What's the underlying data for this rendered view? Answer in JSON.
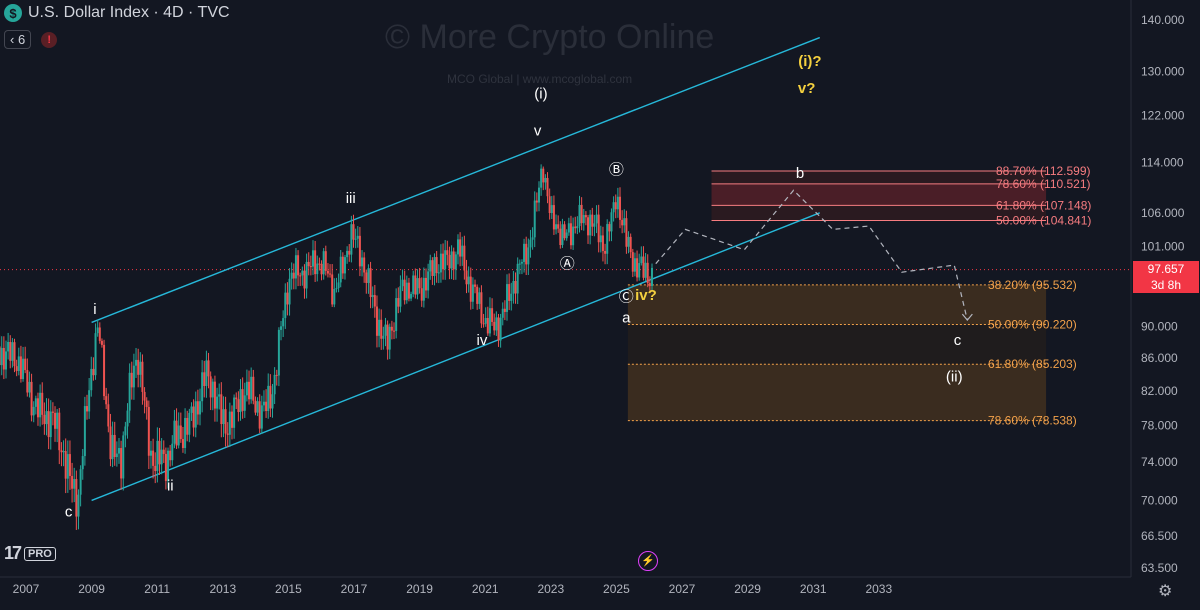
{
  "header": {
    "title": "U.S. Dollar Index · 4D · TVC",
    "coin_symbol": "$",
    "indicator_count": "6",
    "alert_symbol": "!"
  },
  "watermark": {
    "main": "© More Crypto Online",
    "sub": "MCO Global   |   www.mcoglobal.com"
  },
  "branding": {
    "logo": "17",
    "badge": "PRO"
  },
  "price_tag": {
    "price": "97.657",
    "countdown": "3d 8h"
  },
  "colors": {
    "up": "#26a69a",
    "down": "#ef5350",
    "channel": "#26b8d9",
    "fib_support": "#f2a14a",
    "fib_resistance": "#f77c80",
    "label_yellow": "#f4d03f"
  },
  "icons": {
    "settings": "gear-icon",
    "lightning": "lightning-icon",
    "indicators": "chevron-icon",
    "alert": "alert-icon"
  },
  "chart_data": {
    "type": "line",
    "title": "U.S. Dollar Index · 4D · TVC",
    "x_axis_ticks": [
      "2007",
      "2009",
      "2011",
      "2013",
      "2015",
      "2017",
      "2019",
      "2021",
      "2023",
      "2025",
      "2027",
      "2029",
      "2031",
      "2033"
    ],
    "y_axis_ticks": [
      "140.000",
      "130.000",
      "122.000",
      "114.000",
      "106.000",
      "101.000",
      "90.000",
      "86.000",
      "82.000",
      "78.000",
      "74.000",
      "70.000",
      "66.500",
      "63.500"
    ],
    "ylim": [
      63.5,
      140
    ],
    "scale": "log",
    "grid": false,
    "series": [
      {
        "values_note": "DXY closes (approx)",
        "x": [
          2006.0,
          2006.5,
          2007.0,
          2007.5,
          2008.0,
          2008.3,
          2008.6,
          2008.9,
          2009.2,
          2009.6,
          2009.9,
          2010.4,
          2010.8,
          2011.3,
          2011.8,
          2012.5,
          2013.0,
          2013.6,
          2014.2,
          2014.6,
          2015.0,
          2015.3,
          2015.8,
          2016.4,
          2016.9,
          2017.5,
          2018.0,
          2018.5,
          2019.2,
          2019.8,
          2020.2,
          2020.6,
          2021.0,
          2021.5,
          2022.0,
          2022.4,
          2022.75,
          2023.0,
          2023.4,
          2023.8,
          2024.2,
          2024.6,
          2024.9,
          2025.0,
          2025.3,
          2025.6,
          2025.9,
          2026.1
        ],
        "values": [
          89,
          86,
          83,
          80,
          76,
          73,
          71.5,
          81,
          89,
          76,
          75,
          86,
          76,
          73.3,
          78,
          83,
          79,
          81,
          80,
          84,
          95,
          98,
          99,
          94.5,
          103.5,
          94,
          88.5,
          94,
          97,
          98,
          102,
          94,
          90,
          92,
          96,
          103,
          114.5,
          104,
          102,
          106,
          104,
          101,
          107,
          110,
          101,
          97,
          98.2,
          97.66
        ]
      }
    ],
    "channel_lines": [
      {
        "name": "upper",
        "x": [
          2009.0,
          2031.2
        ],
        "y": [
          90.5,
          136.5
        ]
      },
      {
        "name": "lower",
        "x": [
          2009.0,
          2031.2
        ],
        "y": [
          70.0,
          106.0
        ]
      }
    ],
    "projection": {
      "x": [
        2026.2,
        2027.1,
        2028.9,
        2030.4,
        2031.6,
        2032.7,
        2033.7,
        2035.3,
        2035.7
      ],
      "y": [
        98.5,
        103.5,
        100.5,
        109.5,
        103.5,
        104,
        97.3,
        98.3,
        90.8
      ]
    },
    "fib_resistance": [
      {
        "label": "88.70% (112.599)",
        "value": 112.599
      },
      {
        "label": "78.60% (110.521)",
        "value": 110.521
      },
      {
        "label": "61.80% (107.148)",
        "value": 107.148
      },
      {
        "label": "50.00% (104.841)",
        "value": 104.841
      }
    ],
    "fib_support": [
      {
        "label": "38.20% (95.532)",
        "value": 95.532
      },
      {
        "label": "50.00% (90.220)",
        "value": 90.22
      },
      {
        "label": "61.80% (85.203)",
        "value": 85.203
      },
      {
        "label": "78.60% (78.538)",
        "value": 78.538
      }
    ],
    "wave_labels": [
      {
        "text": "c",
        "x": 2008.3,
        "y": 68.4,
        "color": "white"
      },
      {
        "text": "i",
        "x": 2009.1,
        "y": 91.6,
        "color": "white"
      },
      {
        "text": "ii",
        "x": 2011.4,
        "y": 71.0,
        "color": "white"
      },
      {
        "text": "iii",
        "x": 2016.9,
        "y": 107.5,
        "color": "white"
      },
      {
        "text": "iv",
        "x": 2020.9,
        "y": 87.6,
        "color": "white"
      },
      {
        "text": "v",
        "x": 2022.6,
        "y": 118.5,
        "color": "white"
      },
      {
        "text": "(i)",
        "x": 2022.7,
        "y": 125.0,
        "color": "white"
      },
      {
        "text": "Ⓐ",
        "x": 2023.5,
        "y": 97.8,
        "color": "white"
      },
      {
        "text": "Ⓑ",
        "x": 2025.0,
        "y": 112.0,
        "color": "white"
      },
      {
        "text": "Ⓒ",
        "x": 2025.3,
        "y": 93.3,
        "color": "white"
      },
      {
        "text": "iv?",
        "x": 2025.9,
        "y": 93.5,
        "color": "yellow"
      },
      {
        "text": "a",
        "x": 2025.3,
        "y": 90.5,
        "color": "white"
      },
      {
        "text": "b",
        "x": 2030.6,
        "y": 111.5,
        "color": "white"
      },
      {
        "text": "(i)?",
        "x": 2030.9,
        "y": 131.0,
        "color": "yellow"
      },
      {
        "text": "v?",
        "x": 2030.8,
        "y": 126.0,
        "color": "yellow"
      },
      {
        "text": "c",
        "x": 2035.4,
        "y": 87.6,
        "color": "white"
      },
      {
        "text": "(ii)",
        "x": 2035.3,
        "y": 83.1,
        "color": "white"
      }
    ]
  }
}
